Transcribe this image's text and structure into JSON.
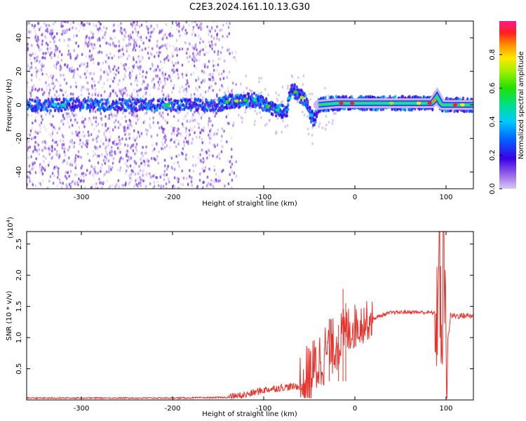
{
  "title": "C2E3.2024.161.10.13.G30",
  "colors": {
    "snr_line": "#e8312a",
    "spec_low": "#6a0fd6",
    "axis": "#000000"
  },
  "spectrogram": {
    "chart_data": {
      "type": "heatmap",
      "xlabel": "Height of straight line (km)",
      "ylabel": "Frequency (Hz)",
      "xlim": [
        -360,
        130
      ],
      "ylim": [
        -50,
        50
      ],
      "xticks": [
        -300,
        -200,
        -100,
        0,
        100
      ],
      "yticks": [
        -40,
        -20,
        0,
        20,
        40
      ],
      "colorbar": {
        "label": "Normalized spectral amplitude",
        "range": [
          0.0,
          1.0
        ],
        "ticks": [
          0.0,
          0.2,
          0.4,
          0.6,
          0.8
        ]
      },
      "ridge": [
        {
          "x": -360,
          "freq": 0
        },
        {
          "x": -150,
          "freq": 0
        },
        {
          "x": -140,
          "freq": 2
        },
        {
          "x": -110,
          "freq": 3
        },
        {
          "x": -90,
          "freq": -2
        },
        {
          "x": -75,
          "freq": -5
        },
        {
          "x": -70,
          "freq": 10
        },
        {
          "x": -55,
          "freq": 3
        },
        {
          "x": -45,
          "freq": -10
        },
        {
          "x": -40,
          "freq": 0
        },
        {
          "x": -20,
          "freq": 1
        },
        {
          "x": 0,
          "freq": 1
        },
        {
          "x": 50,
          "freq": 1
        },
        {
          "x": 85,
          "freq": 1
        },
        {
          "x": 90,
          "freq": 5
        },
        {
          "x": 95,
          "freq": 0
        },
        {
          "x": 130,
          "freq": 0
        }
      ]
    }
  },
  "snr": {
    "chart_data": {
      "type": "line",
      "xlabel": "Height of straight line (km)",
      "ylabel": "SNR (10 * v/v)",
      "yscale_label": "(x10",
      "yscale_exp": "4",
      "yscale_close": ")",
      "xlim": [
        -360,
        130
      ],
      "ylim": [
        0,
        2.7
      ],
      "xticks": [
        -300,
        -200,
        -100,
        0,
        100
      ],
      "yticks": [
        0.5,
        1.0,
        1.5,
        2.0,
        2.5
      ],
      "ytick_labels": [
        "0.5",
        "1.0",
        "1.5",
        "2.0",
        "2.5"
      ],
      "series": [
        {
          "values": [
            {
              "x": -360,
              "y": 0.03
            },
            {
              "x": -300,
              "y": 0.03
            },
            {
              "x": -200,
              "y": 0.03
            },
            {
              "x": -140,
              "y": 0.04
            },
            {
              "x": -120,
              "y": 0.08
            },
            {
              "x": -100,
              "y": 0.16
            },
            {
              "x": -80,
              "y": 0.2
            },
            {
              "x": -60,
              "y": 0.22
            },
            {
              "x": -50,
              "y": 0.35
            },
            {
              "x": -40,
              "y": 0.6
            },
            {
              "x": -30,
              "y": 0.8
            },
            {
              "x": -20,
              "y": 0.9
            },
            {
              "x": -10,
              "y": 1.1
            },
            {
              "x": 0,
              "y": 1.18
            },
            {
              "x": 10,
              "y": 1.25
            },
            {
              "x": 20,
              "y": 1.3
            },
            {
              "x": 30,
              "y": 1.36
            },
            {
              "x": 40,
              "y": 1.4
            },
            {
              "x": 60,
              "y": 1.41
            },
            {
              "x": 85,
              "y": 1.4
            },
            {
              "x": 90,
              "y": 1.38
            },
            {
              "x": 93,
              "y": 2.5
            },
            {
              "x": 95,
              "y": 0.2
            },
            {
              "x": 97,
              "y": 2.7
            },
            {
              "x": 100,
              "y": 0.7
            },
            {
              "x": 105,
              "y": 1.35
            },
            {
              "x": 130,
              "y": 1.35
            }
          ],
          "spikes": [
            {
              "x": -13,
              "y": 1.78
            },
            {
              "x": -10,
              "y": 1.55
            },
            {
              "x": -18,
              "y": 1.2
            },
            {
              "x": -28,
              "y": 1.3
            }
          ]
        }
      ]
    }
  }
}
